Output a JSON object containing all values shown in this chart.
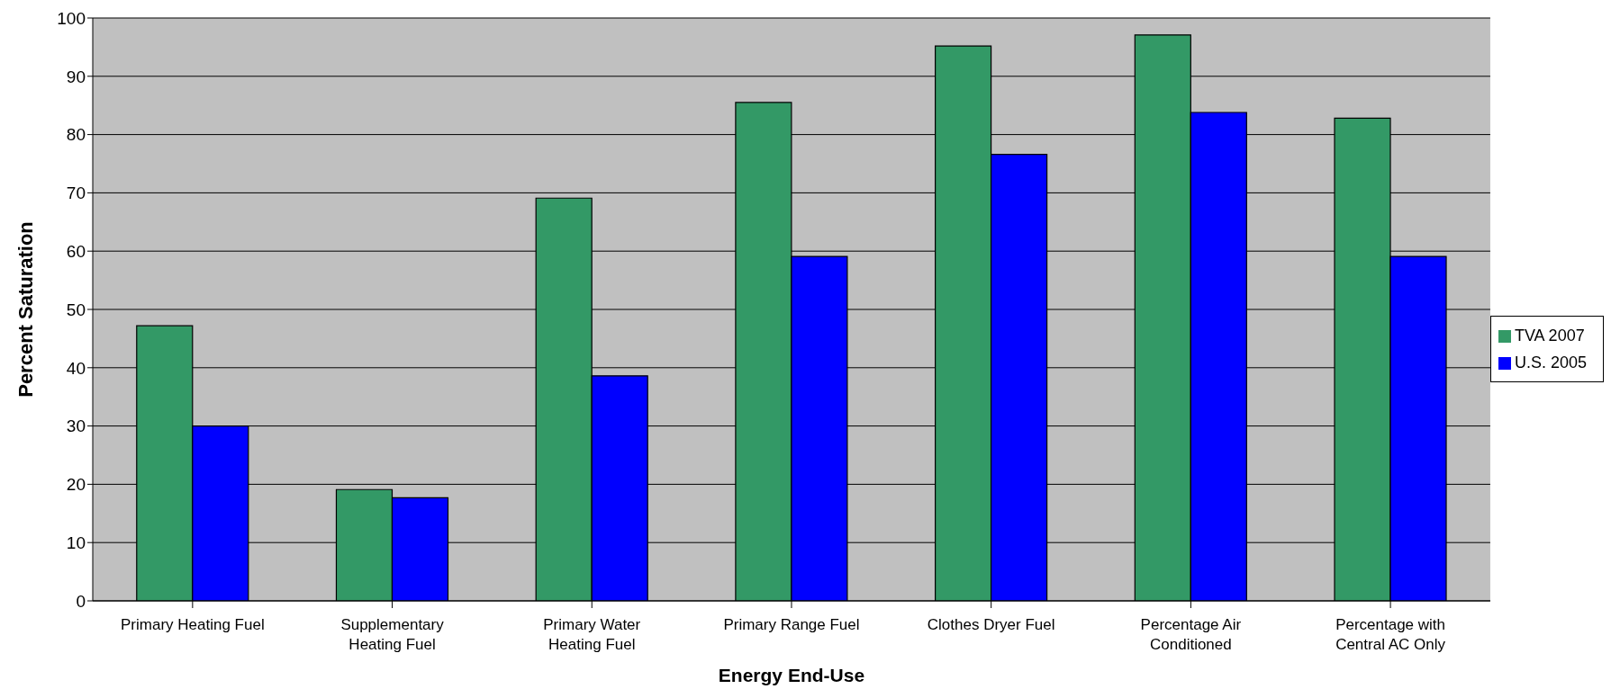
{
  "chart_data": {
    "type": "bar",
    "xlabel": "Energy End-Use",
    "ylabel": "Percent Saturation",
    "categories": [
      "Primary Heating Fuel",
      "Supplementary Heating Fuel",
      "Primary Water Heating Fuel",
      "Primary Range Fuel",
      "Clothes Dryer Fuel",
      "Percentage Air Conditioned",
      "Percentage with Central AC Only"
    ],
    "series": [
      {
        "name": "TVA 2007",
        "color": "#339966",
        "values": [
          47.2,
          19.1,
          69.1,
          85.5,
          95.2,
          97.1,
          82.8
        ]
      },
      {
        "name": "U.S. 2005",
        "color": "#0000ff",
        "values": [
          30.0,
          17.7,
          38.6,
          59.1,
          76.6,
          83.8,
          59.1
        ]
      }
    ],
    "ylim": [
      0,
      100
    ],
    "yticks": [
      0,
      10,
      20,
      30,
      40,
      50,
      60,
      70,
      80,
      90,
      100
    ],
    "grid": "y",
    "legend": "right"
  }
}
